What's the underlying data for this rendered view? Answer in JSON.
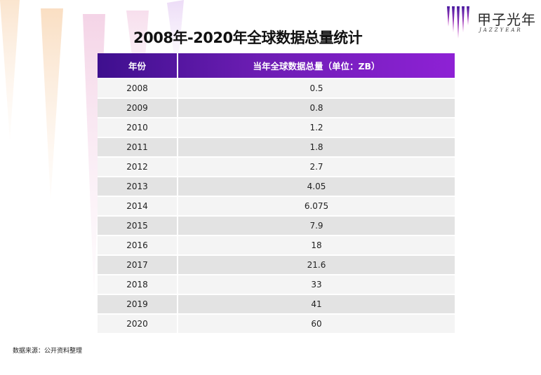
{
  "title": "2008年-2020年全球数据总量统计",
  "logo": {
    "name": "甲子光年",
    "sub": "JAZZYEAR"
  },
  "table": {
    "headers": [
      "年份",
      "当年全球数据总量（单位：ZB）"
    ],
    "rows": [
      [
        "2008",
        "0.5"
      ],
      [
        "2009",
        "0.8"
      ],
      [
        "2010",
        "1.2"
      ],
      [
        "2011",
        "1.8"
      ],
      [
        "2012",
        "2.7"
      ],
      [
        "2013",
        "4.05"
      ],
      [
        "2014",
        "6.075"
      ],
      [
        "2015",
        "7.9"
      ],
      [
        "2016",
        "18"
      ],
      [
        "2017",
        "21.6"
      ],
      [
        "2018",
        "33"
      ],
      [
        "2019",
        "41"
      ],
      [
        "2020",
        "60"
      ]
    ]
  },
  "source": "数据来源：公开资料整理",
  "colors": {
    "header_start": "#3e0f8e",
    "header_end": "#8e21d5",
    "accent": "#7b1fd0"
  }
}
